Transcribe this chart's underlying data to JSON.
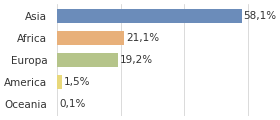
{
  "categories": [
    "Oceania",
    "America",
    "Europa",
    "Africa",
    "Asia"
  ],
  "values": [
    0.1,
    1.5,
    19.2,
    21.1,
    58.1
  ],
  "labels": [
    "0,1%",
    "1,5%",
    "19,2%",
    "21,1%",
    "58,1%"
  ],
  "bar_colors": [
    "#e8e8e8",
    "#e8d87a",
    "#b5c48a",
    "#e8b07a",
    "#6b8cba"
  ],
  "background_color": "#ffffff",
  "xlim": [
    0,
    65
  ],
  "label_fontsize": 7.5,
  "tick_fontsize": 7.5
}
